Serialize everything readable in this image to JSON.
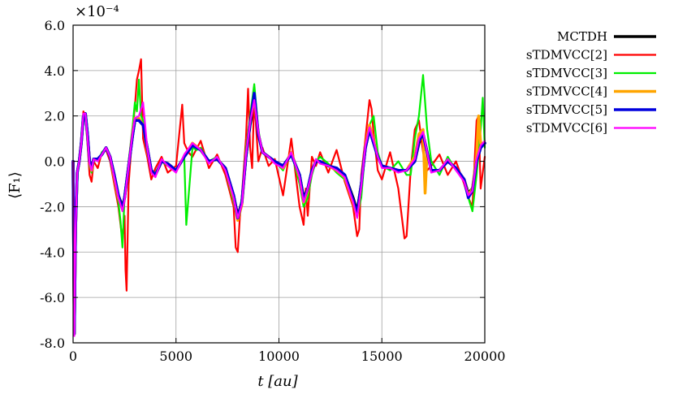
{
  "chart_data": {
    "type": "line",
    "xlabel": "t [au]",
    "ylabel": "⟨F₁⟩",
    "y_exponent_label": "×10⁻⁴",
    "xlim": [
      0,
      20000
    ],
    "ylim": [
      -8.0,
      6.0
    ],
    "x_ticks": [
      0,
      5000,
      10000,
      15000,
      20000
    ],
    "x_tick_labels": [
      "0",
      "5000",
      "10000",
      "15000",
      "20000"
    ],
    "y_ticks": [
      6.0,
      4.0,
      2.0,
      0.0,
      -2.0,
      -4.0,
      -6.0,
      -8.0
    ],
    "y_tick_labels": [
      "6.0",
      "4.0",
      "2.0",
      "0.0",
      "-2.0",
      "-4.0",
      "-6.0",
      "-8.0"
    ],
    "grid": true,
    "legend_position": "outside-right",
    "series": [
      {
        "name": "MCTDH",
        "color": "#000000",
        "width": 3.5,
        "x": [
          0,
          60,
          120,
          200,
          300,
          400,
          500,
          600,
          700,
          800,
          900,
          1000,
          1200,
          1400,
          1600,
          1800,
          2000,
          2200,
          2400,
          2500,
          2700,
          2900,
          3000,
          3200,
          3400,
          3600,
          3800,
          4000,
          4300,
          4600,
          5000,
          5400,
          5800,
          6200,
          6600,
          7000,
          7400,
          7800,
          8000,
          8200,
          8400,
          8600,
          8800,
          9000,
          9200,
          9500,
          9800,
          10200,
          10600,
          11000,
          11200,
          11400,
          11600,
          11800,
          12000,
          12400,
          12800,
          13200,
          13600,
          13800,
          14000,
          14200,
          14400,
          14600,
          14800,
          15000,
          15400,
          15800,
          16200,
          16600,
          16800,
          17000,
          17200,
          17400,
          17800,
          18200,
          18600,
          19000,
          19200,
          19400,
          19600,
          19800,
          20000
        ],
        "y": [
          0.0,
          -7.6,
          -3.0,
          -0.5,
          0.0,
          0.8,
          2.0,
          2.1,
          1.2,
          0.0,
          -0.3,
          0.1,
          0.1,
          0.3,
          0.6,
          0.2,
          -0.6,
          -1.5,
          -2.0,
          -1.6,
          -0.2,
          1.2,
          1.8,
          1.8,
          1.6,
          0.6,
          -0.4,
          -0.6,
          0.0,
          -0.1,
          -0.4,
          0.2,
          0.7,
          0.5,
          0.0,
          0.1,
          -0.3,
          -1.5,
          -2.4,
          -1.8,
          0.2,
          1.6,
          2.6,
          1.2,
          0.4,
          0.2,
          0.0,
          -0.2,
          0.3,
          -0.6,
          -1.6,
          -1.2,
          -0.4,
          0.0,
          0.0,
          -0.2,
          -0.3,
          -0.6,
          -1.6,
          -2.2,
          -1.0,
          0.6,
          1.4,
          0.8,
          0.2,
          -0.2,
          -0.3,
          -0.4,
          -0.4,
          0.0,
          0.8,
          1.2,
          0.4,
          -0.4,
          -0.4,
          0.0,
          -0.3,
          -0.8,
          -1.4,
          -1.2,
          0.0,
          0.6,
          0.8
        ]
      },
      {
        "name": "sTDMVCC[2]",
        "color": "#ff0000",
        "width": 2.2,
        "x": [
          0,
          60,
          120,
          200,
          300,
          400,
          500,
          600,
          700,
          800,
          900,
          1000,
          1200,
          1400,
          1600,
          1800,
          2000,
          2200,
          2400,
          2500,
          2550,
          2600,
          2700,
          2900,
          3000,
          3100,
          3200,
          3300,
          3400,
          3600,
          3800,
          4000,
          4300,
          4600,
          5000,
          5300,
          5400,
          5600,
          5800,
          6200,
          6600,
          7000,
          7400,
          7800,
          7900,
          8000,
          8100,
          8200,
          8400,
          8500,
          8600,
          8700,
          8800,
          9000,
          9200,
          9500,
          9800,
          10200,
          10600,
          11000,
          11200,
          11300,
          11400,
          11600,
          11800,
          12000,
          12400,
          12800,
          13200,
          13600,
          13800,
          13900,
          14000,
          14200,
          14400,
          14500,
          14600,
          14800,
          15000,
          15400,
          15800,
          16100,
          16200,
          16400,
          16600,
          16800,
          17000,
          17200,
          17400,
          17800,
          18200,
          18600,
          19000,
          19200,
          19400,
          19600,
          19700,
          19800,
          20000
        ],
        "y": [
          0.0,
          -7.5,
          -2.5,
          -0.5,
          0.1,
          1.0,
          2.2,
          2.0,
          0.8,
          -0.6,
          -0.9,
          0.0,
          -0.3,
          0.4,
          0.5,
          0.0,
          -1.0,
          -2.0,
          -3.5,
          -2.4,
          -4.8,
          -5.7,
          -1.0,
          1.5,
          2.4,
          3.6,
          4.0,
          4.5,
          1.0,
          0.2,
          -0.8,
          -0.3,
          0.2,
          -0.5,
          -0.2,
          2.5,
          0.8,
          0.4,
          0.2,
          0.9,
          -0.3,
          0.3,
          -0.6,
          -2.0,
          -3.8,
          -4.0,
          -2.5,
          -1.5,
          1.0,
          3.2,
          0.6,
          -0.3,
          2.8,
          0.0,
          0.6,
          -0.2,
          0.1,
          -1.5,
          1.0,
          -2.0,
          -2.8,
          -1.2,
          -2.4,
          0.2,
          -0.2,
          0.4,
          -0.5,
          0.5,
          -0.9,
          -2.0,
          -3.3,
          -3.0,
          -0.6,
          1.0,
          2.7,
          2.3,
          1.2,
          -0.4,
          -0.8,
          0.4,
          -1.2,
          -3.4,
          -3.3,
          -0.4,
          1.4,
          1.8,
          0.4,
          -0.4,
          -0.2,
          0.3,
          -0.6,
          0.0,
          -1.0,
          -1.6,
          -2.0,
          1.8,
          2.0,
          -1.2,
          0.2
        ]
      },
      {
        "name": "sTDMVCC[3]",
        "color": "#00ee00",
        "width": 2.2,
        "x": [
          0,
          60,
          120,
          200,
          300,
          400,
          500,
          600,
          700,
          800,
          900,
          1000,
          1200,
          1400,
          1600,
          1800,
          2000,
          2200,
          2300,
          2400,
          2500,
          2700,
          2900,
          3000,
          3100,
          3200,
          3300,
          3400,
          3600,
          3800,
          4000,
          4300,
          4600,
          5000,
          5400,
          5500,
          5800,
          6000,
          6200,
          6600,
          7000,
          7400,
          7800,
          8000,
          8200,
          8400,
          8600,
          8800,
          8900,
          9000,
          9200,
          9500,
          9800,
          10200,
          10600,
          11000,
          11200,
          11400,
          11600,
          11800,
          12000,
          12400,
          12800,
          13200,
          13600,
          13800,
          14000,
          14200,
          14400,
          14600,
          14800,
          15000,
          15400,
          15800,
          16200,
          16400,
          16600,
          16800,
          17000,
          17100,
          17200,
          17400,
          17800,
          18200,
          18600,
          19000,
          19200,
          19400,
          19600,
          19800,
          19900,
          20000
        ],
        "y": [
          0.0,
          -7.6,
          -2.8,
          -0.4,
          0.0,
          0.9,
          2.0,
          2.0,
          1.0,
          -0.2,
          -0.5,
          0.1,
          0.0,
          0.4,
          0.6,
          0.1,
          -0.8,
          -1.8,
          -2.6,
          -3.8,
          -1.5,
          0.0,
          1.6,
          2.6,
          2.2,
          3.6,
          2.0,
          1.8,
          0.6,
          -0.5,
          -0.5,
          0.0,
          -0.2,
          -0.4,
          0.2,
          -2.8,
          0.6,
          0.5,
          0.6,
          0.0,
          0.2,
          -0.4,
          -1.8,
          -2.6,
          -1.6,
          0.6,
          2.0,
          3.4,
          2.4,
          1.4,
          0.4,
          0.2,
          0.0,
          -0.4,
          0.4,
          -1.0,
          -2.0,
          -1.6,
          -0.6,
          0.0,
          0.2,
          -0.1,
          -0.5,
          -0.8,
          -1.8,
          -2.4,
          -1.6,
          0.6,
          1.6,
          2.0,
          0.4,
          -0.2,
          -0.4,
          0.0,
          -0.6,
          -0.6,
          1.0,
          2.0,
          3.8,
          2.6,
          1.4,
          0.0,
          -0.6,
          0.2,
          -0.4,
          -0.8,
          -1.6,
          -2.2,
          -0.6,
          1.4,
          2.8,
          0.6
        ]
      },
      {
        "name": "sTDMVCC[4]",
        "color": "#ffa500",
        "width": 3.5,
        "x": [
          0,
          60,
          120,
          200,
          300,
          400,
          500,
          600,
          700,
          800,
          900,
          1000,
          1200,
          1400,
          1600,
          1800,
          2000,
          2200,
          2400,
          2500,
          2700,
          2900,
          3000,
          3200,
          3400,
          3600,
          3800,
          4000,
          4300,
          4600,
          5000,
          5400,
          5800,
          6200,
          6600,
          7000,
          7400,
          7800,
          8000,
          8200,
          8400,
          8600,
          8800,
          9000,
          9200,
          9500,
          9800,
          10200,
          10600,
          11000,
          11200,
          11400,
          11600,
          11800,
          12000,
          12400,
          12800,
          13200,
          13600,
          13800,
          14000,
          14200,
          14400,
          14600,
          14800,
          15000,
          15400,
          15800,
          16200,
          16600,
          16800,
          17000,
          17100,
          17200,
          17400,
          17800,
          18200,
          18600,
          19000,
          19200,
          19400,
          19600,
          19700,
          19800,
          20000
        ],
        "y": [
          0.0,
          -7.6,
          -3.0,
          -0.5,
          0.0,
          0.8,
          2.0,
          2.1,
          1.1,
          0.0,
          -0.4,
          0.1,
          0.1,
          0.3,
          0.6,
          0.2,
          -0.7,
          -1.6,
          -2.1,
          -1.6,
          -0.2,
          1.3,
          1.9,
          1.9,
          1.6,
          0.5,
          -0.4,
          -0.6,
          0.0,
          -0.1,
          -0.4,
          0.2,
          0.8,
          0.5,
          0.0,
          0.1,
          -0.3,
          -1.6,
          -2.6,
          -1.9,
          0.3,
          1.8,
          2.8,
          1.2,
          0.4,
          0.2,
          0.0,
          -0.3,
          0.4,
          -0.7,
          -1.8,
          -1.3,
          -0.4,
          0.0,
          0.0,
          -0.2,
          -0.4,
          -0.7,
          -1.8,
          -2.4,
          -1.0,
          0.7,
          1.6,
          0.9,
          0.2,
          -0.2,
          -0.3,
          -0.4,
          -0.4,
          0.2,
          1.2,
          1.4,
          -1.4,
          0.4,
          -0.4,
          -0.4,
          0.0,
          -0.3,
          -0.8,
          -1.5,
          -1.2,
          0.2,
          2.0,
          0.8,
          0.8
        ]
      },
      {
        "name": "sTDMVCC[5]",
        "color": "#0000dd",
        "width": 3.5,
        "x": [
          0,
          60,
          120,
          200,
          300,
          400,
          500,
          600,
          700,
          800,
          900,
          1000,
          1200,
          1400,
          1600,
          1800,
          2000,
          2200,
          2400,
          2500,
          2700,
          2900,
          3000,
          3200,
          3400,
          3600,
          3800,
          4000,
          4300,
          4600,
          5000,
          5400,
          5800,
          6200,
          6600,
          7000,
          7400,
          7800,
          8000,
          8200,
          8400,
          8600,
          8800,
          9000,
          9200,
          9500,
          9800,
          10200,
          10600,
          11000,
          11200,
          11400,
          11600,
          11800,
          12000,
          12400,
          12800,
          13200,
          13600,
          13800,
          14000,
          14200,
          14400,
          14600,
          14800,
          15000,
          15400,
          15800,
          16200,
          16600,
          16800,
          17000,
          17200,
          17400,
          17800,
          18200,
          18600,
          19000,
          19200,
          19400,
          19600,
          19800,
          20000
        ],
        "y": [
          0.0,
          -7.6,
          -3.0,
          -0.5,
          0.0,
          0.8,
          2.0,
          2.1,
          1.2,
          0.0,
          -0.3,
          0.1,
          0.1,
          0.3,
          0.6,
          0.2,
          -0.6,
          -1.5,
          -2.1,
          -1.6,
          -0.2,
          1.2,
          1.8,
          1.8,
          1.6,
          0.6,
          -0.4,
          -0.6,
          0.0,
          -0.1,
          -0.4,
          0.2,
          0.7,
          0.5,
          0.0,
          0.1,
          -0.3,
          -1.5,
          -2.5,
          -1.8,
          0.2,
          1.7,
          3.0,
          1.2,
          0.4,
          0.2,
          0.0,
          -0.2,
          0.3,
          -0.6,
          -1.7,
          -1.2,
          -0.4,
          0.0,
          0.0,
          -0.2,
          -0.3,
          -0.6,
          -1.7,
          -2.3,
          -1.0,
          0.6,
          1.4,
          0.8,
          0.2,
          -0.2,
          -0.3,
          -0.4,
          -0.4,
          0.0,
          0.9,
          1.2,
          0.4,
          -0.4,
          -0.4,
          0.0,
          -0.3,
          -0.8,
          -1.6,
          -1.3,
          0.0,
          0.6,
          0.8
        ]
      },
      {
        "name": "sTDMVCC[6]",
        "color": "#ff00ff",
        "width": 2.2,
        "x": [
          0,
          60,
          120,
          200,
          300,
          400,
          500,
          600,
          700,
          800,
          900,
          1000,
          1200,
          1400,
          1600,
          1800,
          2000,
          2200,
          2400,
          2500,
          2700,
          2900,
          3000,
          3200,
          3400,
          3600,
          3800,
          4000,
          4300,
          4600,
          5000,
          5400,
          5800,
          6200,
          6600,
          7000,
          7400,
          7800,
          8000,
          8200,
          8400,
          8600,
          8800,
          9000,
          9200,
          9500,
          9800,
          10200,
          10600,
          11000,
          11200,
          11400,
          11600,
          11800,
          12000,
          12400,
          12800,
          13200,
          13600,
          13800,
          14000,
          14200,
          14400,
          14600,
          14800,
          15000,
          15400,
          15800,
          16200,
          16600,
          16800,
          17000,
          17200,
          17400,
          17800,
          18200,
          18600,
          19000,
          19200,
          19400,
          19600,
          19800,
          20000
        ],
        "y": [
          0.0,
          -7.7,
          -3.1,
          -0.5,
          0.0,
          0.8,
          2.1,
          2.1,
          1.1,
          -0.1,
          -0.4,
          0.1,
          0.0,
          0.3,
          0.6,
          0.2,
          -0.7,
          -1.6,
          -2.2,
          -1.7,
          -0.2,
          1.3,
          1.9,
          2.0,
          2.6,
          0.6,
          -0.5,
          -0.7,
          0.1,
          -0.2,
          -0.5,
          0.3,
          0.8,
          0.5,
          -0.1,
          0.2,
          -0.4,
          -1.6,
          -2.5,
          -1.9,
          0.3,
          1.7,
          2.7,
          1.3,
          0.4,
          0.2,
          -0.1,
          -0.3,
          0.4,
          -0.7,
          -1.8,
          -1.2,
          -0.5,
          0.1,
          -0.1,
          -0.2,
          -0.4,
          -0.7,
          -1.8,
          -2.5,
          -1.1,
          0.7,
          1.5,
          0.9,
          0.2,
          -0.3,
          -0.3,
          -0.5,
          -0.4,
          0.1,
          1.0,
          1.3,
          0.4,
          -0.5,
          -0.4,
          0.1,
          -0.4,
          -0.9,
          -1.5,
          -1.3,
          0.1,
          0.7,
          0.9
        ]
      }
    ]
  }
}
